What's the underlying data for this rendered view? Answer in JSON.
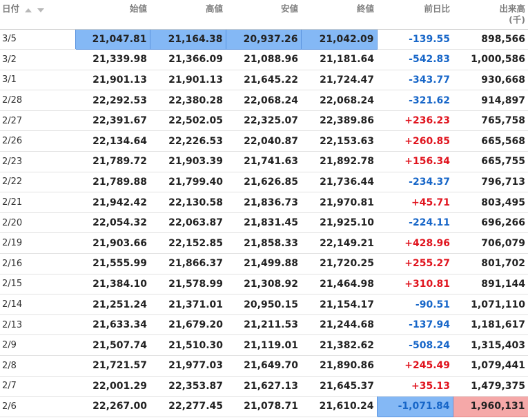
{
  "headers": {
    "date": "日付",
    "open": "始値",
    "high": "高値",
    "low": "安値",
    "close": "終値",
    "change": "前日比",
    "volume": "出来高",
    "volume_unit": "(千)"
  },
  "icons": {
    "sort_asc": "sort-ascending-icon",
    "sort_desc": "sort-descending-icon"
  },
  "colors": {
    "negative": "#1766c8",
    "positive": "#e0141e",
    "highlight_blue": "#84b8f5",
    "highlight_pink": "#f5a8a8"
  },
  "rows": [
    {
      "date": "3/5",
      "open": "21,047.81",
      "high": "21,164.38",
      "low": "20,937.26",
      "close": "21,042.09",
      "change": "-139.55",
      "volume": "898,566"
    },
    {
      "date": "3/2",
      "open": "21,339.98",
      "high": "21,366.09",
      "low": "21,088.96",
      "close": "21,181.64",
      "change": "-542.83",
      "volume": "1,000,586"
    },
    {
      "date": "3/1",
      "open": "21,901.13",
      "high": "21,901.13",
      "low": "21,645.22",
      "close": "21,724.47",
      "change": "-343.77",
      "volume": "930,668"
    },
    {
      "date": "2/28",
      "open": "22,292.53",
      "high": "22,380.28",
      "low": "22,068.24",
      "close": "22,068.24",
      "change": "-321.62",
      "volume": "914,897"
    },
    {
      "date": "2/27",
      "open": "22,391.67",
      "high": "22,502.05",
      "low": "22,325.07",
      "close": "22,389.86",
      "change": "+236.23",
      "volume": "765,758"
    },
    {
      "date": "2/26",
      "open": "22,134.64",
      "high": "22,226.53",
      "low": "22,040.87",
      "close": "22,153.63",
      "change": "+260.85",
      "volume": "665,568"
    },
    {
      "date": "2/23",
      "open": "21,789.72",
      "high": "21,903.39",
      "low": "21,741.63",
      "close": "21,892.78",
      "change": "+156.34",
      "volume": "665,755"
    },
    {
      "date": "2/22",
      "open": "21,789.88",
      "high": "21,799.40",
      "low": "21,626.85",
      "close": "21,736.44",
      "change": "-234.37",
      "volume": "796,713"
    },
    {
      "date": "2/21",
      "open": "21,942.42",
      "high": "22,130.58",
      "low": "21,836.73",
      "close": "21,970.81",
      "change": "+45.71",
      "volume": "803,495"
    },
    {
      "date": "2/20",
      "open": "22,054.32",
      "high": "22,063.87",
      "low": "21,831.45",
      "close": "21,925.10",
      "change": "-224.11",
      "volume": "696,266"
    },
    {
      "date": "2/19",
      "open": "21,903.66",
      "high": "22,152.85",
      "low": "21,858.33",
      "close": "22,149.21",
      "change": "+428.96",
      "volume": "706,079"
    },
    {
      "date": "2/16",
      "open": "21,555.99",
      "high": "21,866.37",
      "low": "21,499.88",
      "close": "21,720.25",
      "change": "+255.27",
      "volume": "801,702"
    },
    {
      "date": "2/15",
      "open": "21,384.10",
      "high": "21,578.99",
      "low": "21,308.92",
      "close": "21,464.98",
      "change": "+310.81",
      "volume": "891,144"
    },
    {
      "date": "2/14",
      "open": "21,251.24",
      "high": "21,371.01",
      "low": "20,950.15",
      "close": "21,154.17",
      "change": "-90.51",
      "volume": "1,071,110"
    },
    {
      "date": "2/13",
      "open": "21,633.34",
      "high": "21,679.20",
      "low": "21,211.53",
      "close": "21,244.68",
      "change": "-137.94",
      "volume": "1,181,617"
    },
    {
      "date": "2/9",
      "open": "21,507.74",
      "high": "21,510.30",
      "low": "21,119.01",
      "close": "21,382.62",
      "change": "-508.24",
      "volume": "1,315,403"
    },
    {
      "date": "2/8",
      "open": "21,721.57",
      "high": "21,977.03",
      "low": "21,649.70",
      "close": "21,890.86",
      "change": "+245.49",
      "volume": "1,079,441"
    },
    {
      "date": "2/7",
      "open": "22,001.29",
      "high": "22,353.87",
      "low": "21,627.13",
      "close": "21,645.37",
      "change": "+35.13",
      "volume": "1,479,375"
    },
    {
      "date": "2/6",
      "open": "22,267.00",
      "high": "22,277.45",
      "low": "21,078.71",
      "close": "21,610.24",
      "change": "-1,071.84",
      "volume": "1,960,131"
    }
  ]
}
